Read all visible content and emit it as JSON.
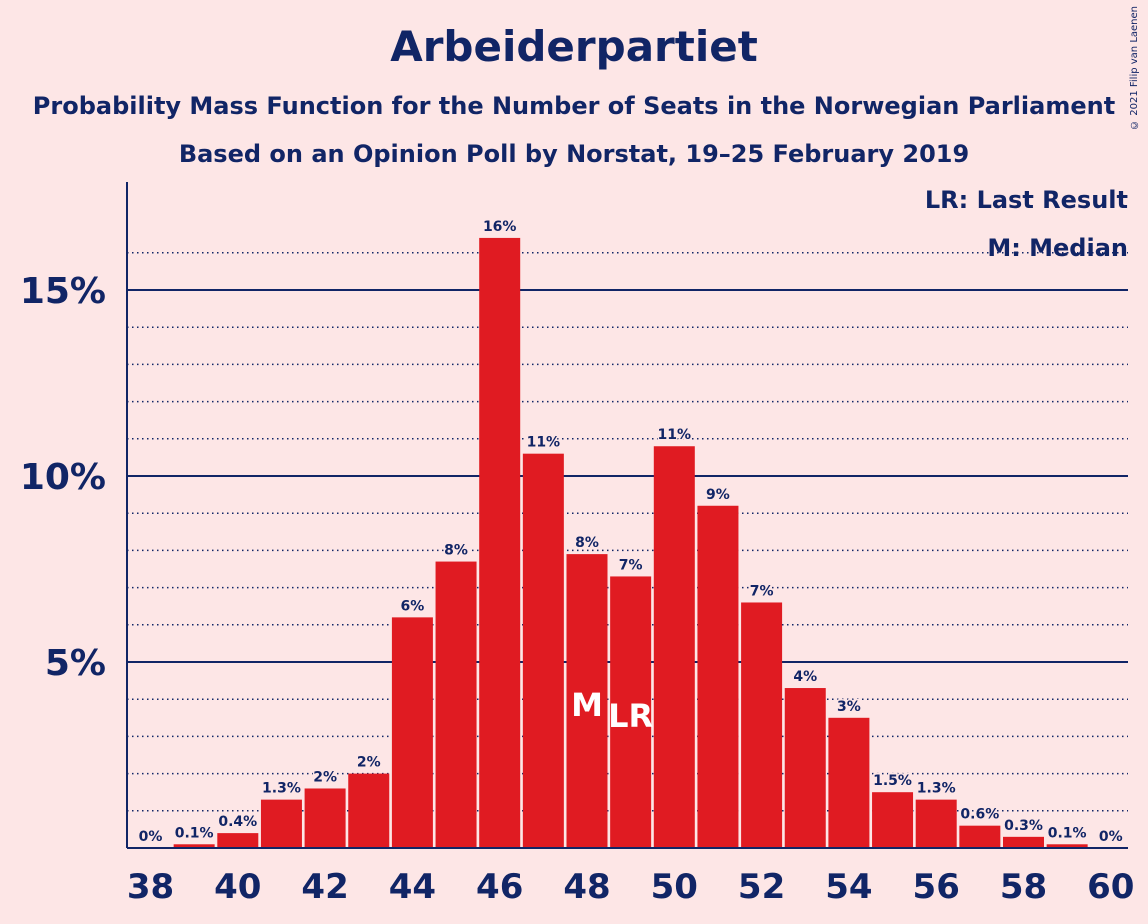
{
  "title": "Arbeiderpartiet",
  "subtitle": "Probability Mass Function for the Number of Seats in the Norwegian Parliament",
  "subtitle2": "Based on an Opinion Poll by Norstat, 19–25 February 2019",
  "copyright": "© 2021 Filip van Laenen",
  "legend": {
    "last_result": "LR: Last Result",
    "median": "M: Median"
  },
  "colors": {
    "bar": "#e01b22",
    "text": "#112566",
    "background": "#fde6e6"
  },
  "chart_data": {
    "type": "bar",
    "x": [
      38,
      39,
      40,
      41,
      42,
      43,
      44,
      45,
      46,
      47,
      48,
      49,
      50,
      51,
      52,
      53,
      54,
      55,
      56,
      57,
      58,
      59,
      60
    ],
    "values": [
      0,
      0.1,
      0.4,
      1.3,
      1.6,
      2.0,
      6.2,
      7.7,
      16.4,
      10.6,
      7.9,
      7.3,
      10.8,
      9.2,
      6.6,
      4.3,
      3.5,
      1.5,
      1.3,
      0.6,
      0.3,
      0.1,
      0
    ],
    "labels": [
      "0%",
      "0.1%",
      "0.4%",
      "1.3%",
      "2%",
      "2%",
      "6%",
      "8%",
      "16%",
      "11%",
      "8%",
      "7%",
      "11%",
      "9%",
      "7%",
      "4%",
      "3%",
      "1.5%",
      "1.3%",
      "0.6%",
      "0.3%",
      "0.1%",
      "0%"
    ],
    "xticks": [
      "38",
      "40",
      "42",
      "44",
      "46",
      "48",
      "50",
      "52",
      "54",
      "56",
      "58",
      "60"
    ],
    "yticks": [
      "5%",
      "10%",
      "15%"
    ],
    "ylim": [
      0,
      17.5
    ],
    "median": 48,
    "median_label": "M",
    "last_result": 49,
    "last_result_label": "LR"
  }
}
